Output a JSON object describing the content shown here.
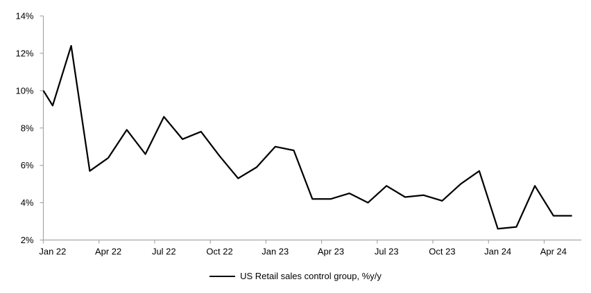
{
  "chart_data": {
    "type": "line",
    "title": "",
    "xlabel": "",
    "ylabel": "",
    "legend_label": "US Retail sales control group, %y/y",
    "legend_position": "bottom-center",
    "grid": false,
    "categories": [
      "Jan 22",
      "Feb 22",
      "Mar 22",
      "Apr 22",
      "May 22",
      "Jun 22",
      "Jul 22",
      "Aug 22",
      "Sep 22",
      "Oct 22",
      "Nov 22",
      "Dec 22",
      "Jan 23",
      "Feb 23",
      "Mar 23",
      "Apr 23",
      "May 23",
      "Jun 23",
      "Jul 23",
      "Aug 23",
      "Sep 23",
      "Oct 23",
      "Nov 23",
      "Dec 23",
      "Jan 24",
      "Feb 24",
      "Mar 24",
      "Apr 24",
      "May 24"
    ],
    "values": [
      9.2,
      12.4,
      5.7,
      6.4,
      7.9,
      6.6,
      8.6,
      7.4,
      7.8,
      6.5,
      5.3,
      5.9,
      7.0,
      6.8,
      4.2,
      4.2,
      4.5,
      4.0,
      4.9,
      4.3,
      4.4,
      4.1,
      5.0,
      5.7,
      2.6,
      2.7,
      4.9,
      3.3,
      3.3
    ],
    "leading_edge_value": 10.0,
    "x_tick_labels": [
      "Jan 22",
      "Apr 22",
      "Jul 22",
      "Oct 22",
      "Jan 23",
      "Apr 23",
      "Jul 23",
      "Oct 23",
      "Jan 24",
      "Apr 24"
    ],
    "x_tick_every": 3,
    "y_ticks": [
      "2%",
      "4%",
      "6%",
      "8%",
      "10%",
      "12%",
      "14%"
    ],
    "y_tick_values": [
      2,
      4,
      6,
      8,
      10,
      12,
      14
    ],
    "ylim": [
      2,
      14
    ],
    "colors": {
      "line": "#000000",
      "axis": "#A6A6A6",
      "text": "#000000",
      "background": "#FFFFFF"
    }
  }
}
